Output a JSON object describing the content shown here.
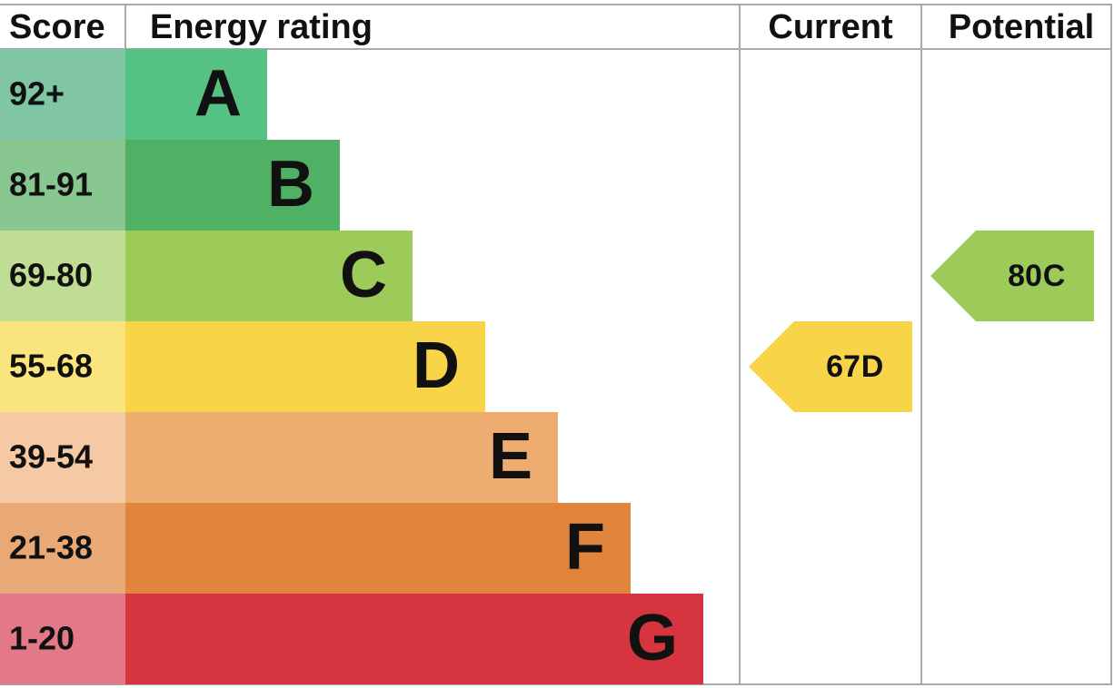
{
  "header": {
    "score": "Score",
    "rating": "Energy rating",
    "current": "Current",
    "potential": "Potential"
  },
  "bands": [
    {
      "score": "92+",
      "letter": "A",
      "color": "#55c283",
      "score_color": "#80c6a5"
    },
    {
      "score": "81-91",
      "letter": "B",
      "color": "#50b063",
      "score_color": "#88c78f"
    },
    {
      "score": "69-80",
      "letter": "C",
      "color": "#9dcb59",
      "score_color": "#bfde94"
    },
    {
      "score": "55-68",
      "letter": "D",
      "color": "#f8d548",
      "score_color": "#fae47d"
    },
    {
      "score": "39-54",
      "letter": "E",
      "color": "#efac71",
      "score_color": "#f4c9a3"
    },
    {
      "score": "21-38",
      "letter": "F",
      "color": "#e0853b",
      "score_color": "#e9a977"
    },
    {
      "score": "1-20",
      "letter": "G",
      "color": "#d6343f",
      "score_color": "#e37888"
    }
  ],
  "current": {
    "score": 67,
    "letter": "D"
  },
  "potential": {
    "score": 80,
    "letter": "C"
  }
}
